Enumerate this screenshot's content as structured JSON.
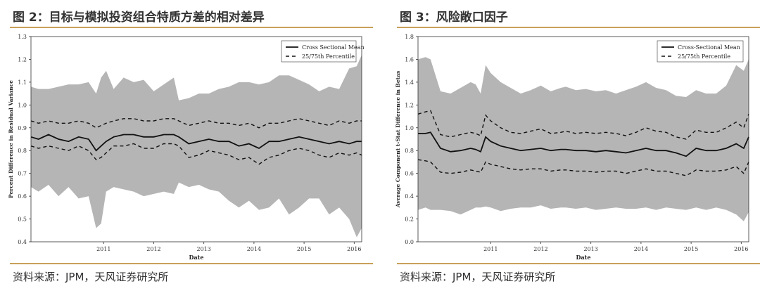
{
  "figures": [
    {
      "title": "图 2：目标与模拟投资组合特质方差的相对差异",
      "source": "资料来源：JPM，天风证券研究所"
    },
    {
      "title": "图 3：风险敞口因子",
      "source": "资料来源：JPM，天风证券研究所"
    }
  ],
  "chart_data": [
    {
      "type": "area",
      "xlabel": "Date",
      "ylabel": "Percent Difference in Residual Variance",
      "xticks": [
        "2011",
        "2012",
        "2013",
        "2014",
        "2015",
        "2016"
      ],
      "xlim": [
        2010.05,
        2016.65
      ],
      "ylim": [
        0.4,
        1.3
      ],
      "yticks": [
        "0.4",
        "0.5",
        "0.6",
        "0.7",
        "0.8",
        "0.9",
        "1.0",
        "1.1",
        "1.2",
        "1.3"
      ],
      "legend_position": "top-right",
      "legend": [
        "Cross Sectional Mean",
        "25/75th Percentile"
      ],
      "x": [
        2010.05,
        2010.2,
        2010.4,
        2010.6,
        2010.8,
        2011.0,
        2011.2,
        2011.35,
        2011.45,
        2011.55,
        2011.7,
        2011.9,
        2012.1,
        2012.3,
        2012.5,
        2012.7,
        2012.9,
        2013.0,
        2013.2,
        2013.4,
        2013.6,
        2013.8,
        2014.0,
        2014.2,
        2014.4,
        2014.6,
        2014.8,
        2015.0,
        2015.2,
        2015.4,
        2015.6,
        2015.8,
        2016.0,
        2016.2,
        2016.4,
        2016.55,
        2016.65
      ],
      "mean": [
        0.86,
        0.85,
        0.87,
        0.85,
        0.84,
        0.86,
        0.85,
        0.8,
        0.82,
        0.84,
        0.86,
        0.87,
        0.87,
        0.86,
        0.86,
        0.87,
        0.87,
        0.86,
        0.83,
        0.84,
        0.85,
        0.84,
        0.84,
        0.82,
        0.83,
        0.81,
        0.84,
        0.84,
        0.85,
        0.86,
        0.85,
        0.84,
        0.83,
        0.84,
        0.83,
        0.84,
        0.84
      ],
      "p75": [
        0.93,
        0.92,
        0.93,
        0.92,
        0.92,
        0.93,
        0.92,
        0.9,
        0.91,
        0.92,
        0.93,
        0.94,
        0.94,
        0.93,
        0.93,
        0.94,
        0.94,
        0.93,
        0.91,
        0.92,
        0.93,
        0.92,
        0.92,
        0.91,
        0.92,
        0.9,
        0.92,
        0.92,
        0.93,
        0.94,
        0.93,
        0.92,
        0.91,
        0.93,
        0.92,
        0.93,
        0.93
      ],
      "p25": [
        0.82,
        0.81,
        0.82,
        0.81,
        0.8,
        0.82,
        0.8,
        0.76,
        0.77,
        0.79,
        0.82,
        0.82,
        0.83,
        0.81,
        0.81,
        0.83,
        0.83,
        0.82,
        0.77,
        0.78,
        0.8,
        0.79,
        0.78,
        0.76,
        0.77,
        0.74,
        0.77,
        0.78,
        0.8,
        0.81,
        0.8,
        0.78,
        0.77,
        0.79,
        0.78,
        0.79,
        0.78
      ],
      "upper": [
        1.08,
        1.07,
        1.07,
        1.08,
        1.09,
        1.09,
        1.1,
        1.05,
        1.12,
        1.15,
        1.07,
        1.12,
        1.1,
        1.11,
        1.06,
        1.09,
        1.12,
        1.02,
        1.03,
        1.05,
        1.05,
        1.07,
        1.08,
        1.1,
        1.1,
        1.09,
        1.1,
        1.13,
        1.13,
        1.11,
        1.09,
        1.06,
        1.08,
        1.07,
        1.16,
        1.17,
        1.22
      ],
      "lower": [
        0.64,
        0.62,
        0.65,
        0.6,
        0.64,
        0.59,
        0.6,
        0.46,
        0.48,
        0.62,
        0.64,
        0.63,
        0.62,
        0.6,
        0.61,
        0.62,
        0.61,
        0.66,
        0.64,
        0.65,
        0.63,
        0.62,
        0.58,
        0.55,
        0.58,
        0.54,
        0.55,
        0.59,
        0.52,
        0.55,
        0.59,
        0.59,
        0.52,
        0.55,
        0.5,
        0.42,
        0.46
      ]
    },
    {
      "type": "area",
      "xlabel": "Date",
      "ylabel": "Average Component t-Stat Difference in Betas",
      "xticks": [
        "2011",
        "2012",
        "2013",
        "2014",
        "2015",
        "2016"
      ],
      "xlim": [
        2010.05,
        2016.65
      ],
      "ylim": [
        0.0,
        1.8
      ],
      "yticks": [
        "0.0",
        "0.2",
        "0.4",
        "0.6",
        "0.8",
        "1.0",
        "1.2",
        "1.4",
        "1.6",
        "1.8"
      ],
      "legend_position": "top-right",
      "legend": [
        "Cross-Sectional Mean",
        "25/75th Percentile"
      ],
      "x": [
        2010.05,
        2010.2,
        2010.3,
        2010.5,
        2010.7,
        2010.9,
        2011.1,
        2011.2,
        2011.3,
        2011.4,
        2011.5,
        2011.7,
        2011.9,
        2012.1,
        2012.3,
        2012.5,
        2012.7,
        2012.9,
        2013.0,
        2013.2,
        2013.4,
        2013.6,
        2013.8,
        2014.0,
        2014.2,
        2014.4,
        2014.6,
        2014.8,
        2015.0,
        2015.2,
        2015.4,
        2015.6,
        2015.8,
        2016.0,
        2016.2,
        2016.4,
        2016.55,
        2016.65
      ],
      "mean": [
        0.95,
        0.95,
        0.96,
        0.82,
        0.79,
        0.8,
        0.82,
        0.81,
        0.79,
        0.92,
        0.88,
        0.84,
        0.82,
        0.8,
        0.81,
        0.82,
        0.8,
        0.81,
        0.81,
        0.8,
        0.8,
        0.79,
        0.8,
        0.79,
        0.78,
        0.8,
        0.82,
        0.8,
        0.8,
        0.78,
        0.75,
        0.82,
        0.8,
        0.8,
        0.82,
        0.86,
        0.82,
        0.92
      ],
      "p75": [
        1.12,
        1.14,
        1.15,
        0.94,
        0.92,
        0.94,
        0.96,
        0.95,
        0.93,
        1.11,
        1.06,
        1.0,
        0.96,
        0.95,
        0.97,
        0.99,
        0.95,
        0.96,
        0.97,
        0.95,
        0.96,
        0.95,
        0.96,
        0.95,
        0.93,
        0.96,
        1.0,
        0.97,
        0.96,
        0.92,
        0.9,
        0.98,
        0.96,
        0.96,
        1.0,
        1.05,
        1.0,
        1.12
      ],
      "p25": [
        0.72,
        0.71,
        0.7,
        0.61,
        0.6,
        0.61,
        0.63,
        0.62,
        0.61,
        0.7,
        0.68,
        0.66,
        0.64,
        0.63,
        0.64,
        0.64,
        0.62,
        0.63,
        0.63,
        0.62,
        0.62,
        0.61,
        0.62,
        0.62,
        0.6,
        0.62,
        0.64,
        0.62,
        0.62,
        0.6,
        0.58,
        0.63,
        0.62,
        0.62,
        0.63,
        0.66,
        0.6,
        0.7
      ],
      "upper": [
        1.6,
        1.62,
        1.6,
        1.32,
        1.3,
        1.35,
        1.4,
        1.38,
        1.3,
        1.55,
        1.48,
        1.4,
        1.35,
        1.3,
        1.33,
        1.37,
        1.32,
        1.35,
        1.36,
        1.33,
        1.34,
        1.32,
        1.33,
        1.3,
        1.33,
        1.36,
        1.4,
        1.35,
        1.33,
        1.28,
        1.27,
        1.33,
        1.3,
        1.3,
        1.37,
        1.55,
        1.5,
        1.6
      ],
      "lower": [
        0.28,
        0.3,
        0.28,
        0.28,
        0.27,
        0.24,
        0.28,
        0.3,
        0.3,
        0.31,
        0.3,
        0.27,
        0.29,
        0.3,
        0.3,
        0.32,
        0.29,
        0.3,
        0.3,
        0.29,
        0.3,
        0.28,
        0.29,
        0.3,
        0.29,
        0.29,
        0.3,
        0.28,
        0.3,
        0.29,
        0.28,
        0.3,
        0.28,
        0.3,
        0.28,
        0.24,
        0.18,
        0.26
      ]
    }
  ]
}
